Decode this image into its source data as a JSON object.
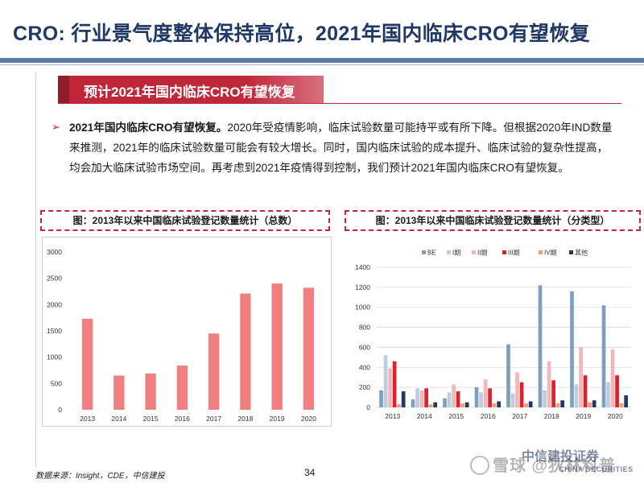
{
  "slide": {
    "title": "CRO: 行业景气度整体保持高位，2021年国内临床CRO有望恢复",
    "section_title": "预计2021年国内临床CRO有望恢复",
    "bullet_marker": "➢",
    "bullet_bold": "2021年国内临床CRO有望恢复。",
    "bullet_text": "2020年受疫情影响，临床试验数量可能持平或有所下降。但根据2020年IND数量来推测，2021年的临床试验数量可能会有较大增长。同时，国内临床试验的成本提升、临床试验的复杂性提高，均会加大临床试验市场空间。再考虑到2021年疫情得到控制，我们预计2021年国内临床CRO有望恢复。"
  },
  "captions": {
    "left": "图：2013年以来中国临床试验登记数量统计（总数）",
    "right": "图：2013年以来中国临床试验登记数量统计（分类型）"
  },
  "footer": {
    "source": "数据来源：Insight，CDE，中信建投",
    "page": "34"
  },
  "watermark": {
    "text": "雪球 @狄林科普",
    "brand_cn": "中信建投证券",
    "brand_en": "CHINA SECURITIES"
  },
  "colors": {
    "title": "#1f3864",
    "accent": "#c0283a",
    "bar_total": "#f08080",
    "BE": "#7f9fbf",
    "I": "#bccde0",
    "II": "#f4b6b6",
    "III": "#d9232e",
    "IV": "#f0a070",
    "other": "#1f3864"
  },
  "chart_data": [
    {
      "type": "bar",
      "title": "",
      "categories": [
        "2013",
        "2014",
        "2015",
        "2016",
        "2017",
        "2018",
        "2019",
        "2020"
      ],
      "values": [
        1730,
        650,
        690,
        840,
        1450,
        2210,
        2400,
        2320
      ],
      "ylim": [
        0,
        3000
      ],
      "yticks": [
        0,
        500,
        1000,
        1500,
        2000,
        2500,
        3000
      ],
      "grid": false
    },
    {
      "type": "bar",
      "title": "",
      "categories": [
        "2013",
        "2014",
        "2015",
        "2016",
        "2017",
        "2018",
        "2019",
        "2020"
      ],
      "series": [
        {
          "name": "BE",
          "values": [
            170,
            80,
            90,
            200,
            630,
            1220,
            1160,
            1020
          ]
        },
        {
          "name": "I期",
          "values": [
            520,
            190,
            150,
            150,
            140,
            170,
            230,
            250
          ]
        },
        {
          "name": "II期",
          "values": [
            390,
            170,
            230,
            280,
            350,
            460,
            600,
            580
          ]
        },
        {
          "name": "III期",
          "values": [
            460,
            190,
            160,
            190,
            250,
            270,
            320,
            320
          ]
        },
        {
          "name": "IV期",
          "values": [
            30,
            30,
            40,
            40,
            40,
            40,
            50,
            40
          ]
        },
        {
          "name": "其他",
          "values": [
            160,
            50,
            50,
            60,
            60,
            70,
            70,
            120
          ]
        }
      ],
      "ylim": [
        0,
        1400
      ],
      "yticks": [
        0,
        200,
        400,
        600,
        800,
        1000,
        1200,
        1400
      ],
      "grid": true,
      "legend_position": "top"
    }
  ]
}
